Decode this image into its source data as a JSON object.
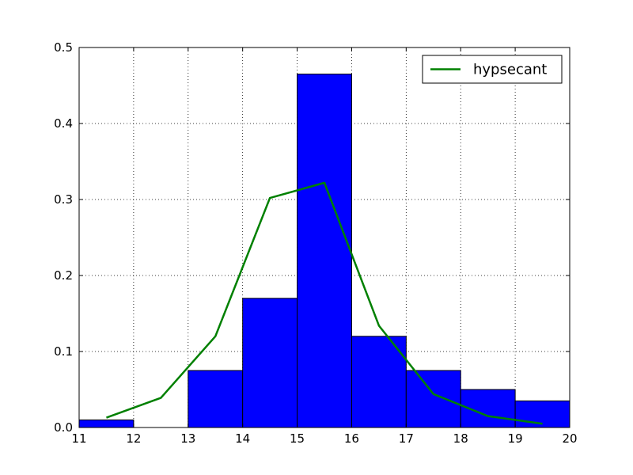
{
  "colors": {
    "bar_fill": "#0000ff",
    "bar_stroke": "#000000",
    "line": "#008000",
    "grid": "#000000",
    "axes": "#000000",
    "background": "#ffffff"
  },
  "chart_data": {
    "type": "bar",
    "title": "",
    "xlabel": "",
    "ylabel": "",
    "xlim": [
      11,
      20
    ],
    "ylim": [
      0,
      0.5
    ],
    "grid": true,
    "grid_style": "dotted",
    "legend_position": "top-right",
    "x_ticks": [
      "11",
      "12",
      "13",
      "14",
      "15",
      "16",
      "17",
      "18",
      "19",
      "20"
    ],
    "y_ticks": [
      "0.0",
      "0.1",
      "0.2",
      "0.3",
      "0.4",
      "0.5"
    ],
    "histogram": {
      "bins": [
        {
          "start": 11,
          "end": 12,
          "value": 0.01
        },
        {
          "start": 12,
          "end": 13,
          "value": 0.0
        },
        {
          "start": 13,
          "end": 14,
          "value": 0.075
        },
        {
          "start": 14,
          "end": 15,
          "value": 0.17
        },
        {
          "start": 15,
          "end": 16,
          "value": 0.465
        },
        {
          "start": 16,
          "end": 17,
          "value": 0.12
        },
        {
          "start": 17,
          "end": 18,
          "value": 0.075
        },
        {
          "start": 18,
          "end": 19,
          "value": 0.05
        },
        {
          "start": 19,
          "end": 20,
          "value": 0.035
        }
      ]
    },
    "series": [
      {
        "name": "hypsecant",
        "type": "line",
        "x": [
          11.5,
          12.5,
          13.5,
          14.5,
          15.5,
          16.5,
          17.5,
          18.5,
          19.5
        ],
        "y": [
          0.013,
          0.039,
          0.12,
          0.302,
          0.322,
          0.134,
          0.044,
          0.015,
          0.005
        ]
      }
    ]
  }
}
